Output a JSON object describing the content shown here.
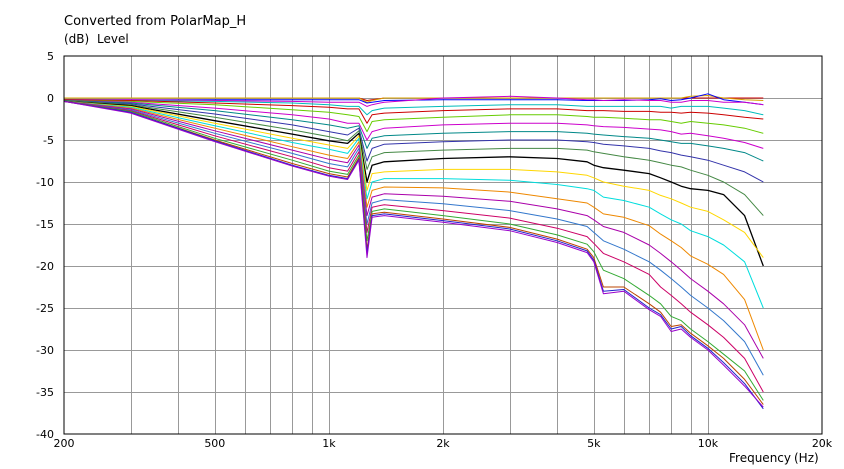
{
  "chart_data": {
    "type": "line",
    "title": "Converted from PolarMap_H",
    "ylabel_unit": "(dB)",
    "ylabel": "Level",
    "xlabel": "Frequency",
    "xlabel_unit": "(Hz)",
    "xscale": "log",
    "xlim": [
      200,
      20000
    ],
    "ylim": [
      -40,
      5
    ],
    "grid": true,
    "legend": "none",
    "x_ticks": [
      {
        "value": 200,
        "label": "200"
      },
      {
        "value": 500,
        "label": "500"
      },
      {
        "value": 1000,
        "label": "1k"
      },
      {
        "value": 2000,
        "label": "2k"
      },
      {
        "value": 5000,
        "label": "5k"
      },
      {
        "value": 10000,
        "label": "10k"
      },
      {
        "value": 20000,
        "label": "20k"
      }
    ],
    "y_ticks": [
      {
        "value": 5,
        "label": "5"
      },
      {
        "value": 0,
        "label": "0"
      },
      {
        "value": -5,
        "label": "-5"
      },
      {
        "value": -10,
        "label": "-10"
      },
      {
        "value": -15,
        "label": "-15"
      },
      {
        "value": -20,
        "label": "-20"
      },
      {
        "value": -25,
        "label": "-25"
      },
      {
        "value": -30,
        "label": "-30"
      },
      {
        "value": -35,
        "label": "-35"
      },
      {
        "value": -40,
        "label": "-40"
      }
    ],
    "x": [
      200,
      300,
      500,
      800,
      1000,
      1120,
      1200,
      1260,
      1300,
      1400,
      2000,
      3000,
      4000,
      4800,
      5000,
      5300,
      6000,
      7000,
      7500,
      8000,
      8500,
      9000,
      10000,
      11000,
      12500,
      14000
    ],
    "series": [
      {
        "color": "#cc0000",
        "values": [
          0,
          0,
          0,
          0,
          0,
          0,
          0,
          -0.3,
          -0.2,
          0,
          0,
          0,
          0,
          0,
          0,
          0,
          0,
          0,
          0,
          0,
          0,
          0,
          0,
          0,
          0,
          0
        ]
      },
      {
        "color": "#d8a000",
        "values": [
          0,
          0,
          0,
          0,
          0,
          0,
          0,
          -0.5,
          -0.3,
          0,
          0,
          0,
          0,
          0,
          0,
          0,
          0,
          0,
          0,
          0,
          0,
          0.2,
          0.3,
          0,
          -0.2,
          -0.3
        ]
      },
      {
        "color": "#0000ff",
        "values": [
          -0.2,
          -0.2,
          -0.2,
          -0.2,
          -0.2,
          -0.2,
          -0.2,
          -0.6,
          -0.5,
          -0.3,
          -0.2,
          -0.2,
          -0.2,
          -0.3,
          -0.3,
          -0.3,
          -0.3,
          -0.2,
          -0.1,
          -0.3,
          -0.2,
          0,
          0.5,
          -0.2,
          -0.5,
          -0.8
        ]
      },
      {
        "color": "#cc00cc",
        "values": [
          -0.2,
          -0.2,
          -0.3,
          -0.4,
          -0.5,
          -0.5,
          -0.5,
          -1,
          -0.8,
          -0.5,
          0,
          0.2,
          0,
          -0.2,
          -0.2,
          -0.3,
          -0.2,
          -0.3,
          -0.3,
          -0.5,
          -0.5,
          -0.3,
          -0.3,
          -0.5,
          -0.5,
          -0.8
        ]
      },
      {
        "color": "#00bbbb",
        "values": [
          -0.2,
          -0.3,
          -0.4,
          -0.6,
          -0.8,
          -1,
          -1,
          -2,
          -1.5,
          -1.2,
          -1,
          -0.8,
          -0.8,
          -1,
          -1,
          -1,
          -1,
          -1,
          -1,
          -1.2,
          -1,
          -1,
          -1,
          -1.2,
          -1.5,
          -2
        ]
      },
      {
        "color": "#cc0000",
        "values": [
          -0.2,
          -0.3,
          -0.6,
          -0.9,
          -1.1,
          -1.3,
          -1.3,
          -3,
          -2,
          -1.8,
          -1.5,
          -1.3,
          -1.3,
          -1.5,
          -1.5,
          -1.5,
          -1.6,
          -1.6,
          -1.7,
          -1.7,
          -1.8,
          -1.7,
          -1.8,
          -2,
          -2.3,
          -2.5
        ]
      },
      {
        "color": "#66cc00",
        "values": [
          -0.3,
          -0.4,
          -0.8,
          -1.4,
          -1.7,
          -2,
          -2.2,
          -4,
          -2.8,
          -2.6,
          -2.3,
          -2,
          -2,
          -2.2,
          -2.3,
          -2.3,
          -2.4,
          -2.6,
          -2.6,
          -2.8,
          -3,
          -2.8,
          -3,
          -3.2,
          -3.6,
          -4.2
        ]
      },
      {
        "color": "#cc00cc",
        "values": [
          -0.3,
          -0.5,
          -1.2,
          -2,
          -2.5,
          -3,
          -3,
          -5,
          -4,
          -3.6,
          -3.2,
          -3,
          -3,
          -3.2,
          -3.3,
          -3.4,
          -3.5,
          -3.7,
          -3.8,
          -4,
          -4.3,
          -4.2,
          -4.5,
          -4.8,
          -5.3,
          -6
        ]
      },
      {
        "color": "#008888",
        "values": [
          -0.3,
          -0.6,
          -1.5,
          -2.6,
          -3.2,
          -3.6,
          -3.3,
          -6,
          -4.8,
          -4.5,
          -4.2,
          -4,
          -4,
          -4.2,
          -4.3,
          -4.4,
          -4.6,
          -4.8,
          -5,
          -5.2,
          -5.4,
          -5.4,
          -5.7,
          -6,
          -6.5,
          -7.5
        ]
      },
      {
        "color": "#3333aa",
        "values": [
          -0.3,
          -0.7,
          -1.9,
          -3.2,
          -4,
          -4.4,
          -3.6,
          -7.5,
          -6,
          -5.5,
          -5.2,
          -5,
          -5,
          -5.2,
          -5.3,
          -5.5,
          -5.7,
          -6,
          -6.3,
          -6.5,
          -6.8,
          -7,
          -7.4,
          -8,
          -8.8,
          -10
        ]
      },
      {
        "color": "#448844",
        "values": [
          -0.3,
          -0.8,
          -2.3,
          -3.8,
          -4.6,
          -5.1,
          -3.9,
          -8.5,
          -7,
          -6.5,
          -6.2,
          -6,
          -6,
          -6.2,
          -6.4,
          -6.6,
          -7,
          -7.4,
          -7.7,
          -8,
          -8.2,
          -8.6,
          -9.2,
          -10,
          -11.5,
          -14
        ]
      },
      {
        "color": "#000000",
        "values": [
          -0.4,
          -0.9,
          -2.7,
          -4.3,
          -5.1,
          -5.4,
          -4.2,
          -10,
          -8,
          -7.6,
          -7.2,
          -7,
          -7.2,
          -7.6,
          -8,
          -8.3,
          -8.6,
          -9,
          -9.5,
          -10,
          -10.5,
          -10.8,
          -11,
          -11.5,
          -14,
          -20
        ]
      },
      {
        "color": "#ffd700",
        "values": [
          -0.4,
          -1,
          -3,
          -4.8,
          -5.6,
          -6,
          -4.5,
          -11,
          -9,
          -8.8,
          -8.5,
          -8.5,
          -8.8,
          -9.2,
          -9.5,
          -10,
          -10.5,
          -11,
          -11.6,
          -12,
          -12.5,
          -13,
          -13.5,
          -14.5,
          -16,
          -19
        ]
      },
      {
        "color": "#00dddd",
        "values": [
          -0.4,
          -1.1,
          -3.3,
          -5.3,
          -6.1,
          -6.6,
          -4.8,
          -12,
          -10,
          -9.6,
          -9.6,
          -9.8,
          -10.3,
          -10.8,
          -11,
          -11.8,
          -12.2,
          -13,
          -13.8,
          -14.5,
          -15,
          -15.8,
          -16.5,
          -17.5,
          -19.5,
          -25
        ]
      },
      {
        "color": "#ee8800",
        "values": [
          -0.4,
          -1.2,
          -3.6,
          -5.8,
          -6.8,
          -7.2,
          -5.2,
          -13,
          -11,
          -10.6,
          -10.7,
          -11.2,
          -12,
          -12.5,
          -13,
          -13.8,
          -14.2,
          -15.2,
          -16.2,
          -17,
          -17.8,
          -18.8,
          -19.8,
          -21,
          -24,
          -30
        ]
      },
      {
        "color": "#aa00aa",
        "values": [
          -0.4,
          -1.3,
          -3.9,
          -6.2,
          -7.3,
          -7.7,
          -5.6,
          -14,
          -11.8,
          -11.4,
          -11.7,
          -12.3,
          -13.2,
          -14,
          -14.5,
          -15.3,
          -16,
          -17.5,
          -18.5,
          -19.5,
          -20.5,
          -21.5,
          -23,
          -24.5,
          -27,
          -31
        ]
      },
      {
        "color": "#3377cc",
        "values": [
          -0.4,
          -1.4,
          -4.2,
          -6.6,
          -7.8,
          -8.2,
          -6,
          -15,
          -12.5,
          -12.1,
          -12.6,
          -13.4,
          -14.4,
          -15.3,
          -16,
          -17,
          -18,
          -19.5,
          -20.5,
          -21.5,
          -22.5,
          -23.5,
          -25,
          -26.5,
          -29,
          -33
        ]
      },
      {
        "color": "#cc0066",
        "values": [
          -0.4,
          -1.5,
          -4.5,
          -7,
          -8.3,
          -8.7,
          -6.4,
          -16,
          -13,
          -12.7,
          -13.4,
          -14.3,
          -15.5,
          -16.5,
          -17.3,
          -18.5,
          -19.5,
          -21,
          -22.5,
          -23.5,
          -24.5,
          -25.5,
          -27,
          -28.5,
          -31,
          -35
        ]
      },
      {
        "color": "#33aa33",
        "values": [
          -0.4,
          -1.6,
          -4.8,
          -7.4,
          -8.7,
          -9.1,
          -6.8,
          -17,
          -13.5,
          -13.2,
          -14,
          -15,
          -16.3,
          -17.4,
          -18.3,
          -20.5,
          -21.5,
          -23.5,
          -24.5,
          -26,
          -26.5,
          -27.5,
          -29,
          -30.5,
          -32.5,
          -36
        ]
      },
      {
        "color": "#bb4400",
        "values": [
          -0.4,
          -1.7,
          -5,
          -7.8,
          -9,
          -9.4,
          -7.1,
          -18,
          -13.8,
          -13.6,
          -14.4,
          -15.4,
          -16.8,
          -18,
          -19,
          -22.5,
          -22.5,
          -24.5,
          -25.5,
          -27.2,
          -27,
          -28,
          -29.5,
          -31,
          -33.5,
          -36.5
        ]
      },
      {
        "color": "#2222cc",
        "values": [
          -0.4,
          -1.7,
          -5.1,
          -8,
          -9.2,
          -9.6,
          -7.3,
          -18.5,
          -14,
          -13.8,
          -14.6,
          -15.6,
          -17,
          -18.2,
          -19.3,
          -23,
          -22.8,
          -25,
          -25.8,
          -27.5,
          -27.2,
          -28.3,
          -29.8,
          -31.5,
          -34,
          -37
        ]
      },
      {
        "color": "#9900cc",
        "values": [
          -0.4,
          -1.8,
          -5.2,
          -8.1,
          -9.3,
          -9.7,
          -7.4,
          -19,
          -14.2,
          -14,
          -14.8,
          -15.8,
          -17.2,
          -18.4,
          -19.5,
          -23.3,
          -23,
          -25.2,
          -26,
          -27.8,
          -27.5,
          -28.5,
          -30,
          -31.8,
          -34.3,
          -36.8
        ]
      }
    ]
  }
}
